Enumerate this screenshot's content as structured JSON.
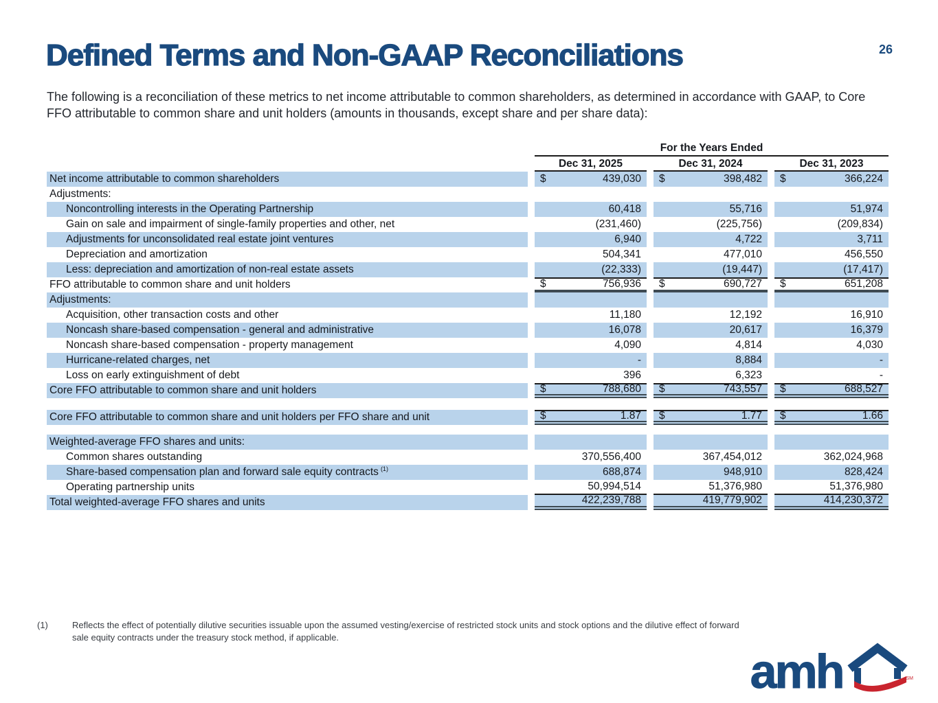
{
  "page": {
    "title": "Defined Terms and Non-GAAP Reconciliations",
    "page_number": "26",
    "intro": "The following is a reconciliation of these metrics to net income attributable to common shareholders, as determined in accordance with GAAP, to Core FFO attributable to common share and unit holders (amounts in thousands, except share and per share data):"
  },
  "colors": {
    "accent_blue": "#1A4A7E",
    "row_highlight": "#B9D3EB",
    "heavy_line": "#3E4A52",
    "thin_line": "#1c1c1c",
    "logo_red": "#C9242E"
  },
  "table": {
    "group_header": "For the Years Ended",
    "columns": [
      "Dec 31, 2025",
      "Dec 31, 2024",
      "Dec 31, 2023"
    ],
    "rows": [
      {
        "label": "Net income attributable to common shareholders",
        "indent": 0,
        "highlight": true,
        "dollar": true,
        "values": [
          "439,030",
          "398,482",
          "366,224"
        ]
      },
      {
        "label": "Adjustments:",
        "indent": 0,
        "highlight": false,
        "values": null
      },
      {
        "label": "Noncontrolling interests in the Operating Partnership",
        "indent": 1,
        "highlight": true,
        "values": [
          "60,418",
          "55,716",
          "51,974"
        ]
      },
      {
        "label": "Gain on sale and impairment of single-family properties and other, net",
        "indent": 1,
        "highlight": false,
        "values": [
          "(231,460)",
          "(225,756)",
          "(209,834)"
        ]
      },
      {
        "label": "Adjustments for unconsolidated real estate joint ventures",
        "indent": 1,
        "highlight": true,
        "values": [
          "6,940",
          "4,722",
          "3,711"
        ]
      },
      {
        "label": "Depreciation and amortization",
        "indent": 1,
        "highlight": false,
        "values": [
          "504,341",
          "477,010",
          "456,550"
        ]
      },
      {
        "label": "Less: depreciation and amortization of non-real estate assets",
        "indent": 1,
        "highlight": true,
        "values": [
          "(22,333)",
          "(19,447)",
          "(17,417)"
        ]
      },
      {
        "label": "FFO attributable to common share and unit holders",
        "indent": 0,
        "highlight": false,
        "dollar": true,
        "values": [
          "756,936",
          "690,727",
          "651,208"
        ],
        "top_line": "thin",
        "bottom_line": "thick"
      },
      {
        "label": "Adjustments:",
        "indent": 0,
        "highlight": true,
        "values": null
      },
      {
        "label": "Acquisition, other transaction costs and other",
        "indent": 1,
        "highlight": false,
        "values": [
          "11,180",
          "12,192",
          "16,910"
        ]
      },
      {
        "label": "Noncash share-based compensation - general and administrative",
        "indent": 1,
        "highlight": true,
        "values": [
          "16,078",
          "20,617",
          "16,379"
        ]
      },
      {
        "label": "Noncash share-based compensation - property management",
        "indent": 1,
        "highlight": false,
        "values": [
          "4,090",
          "4,814",
          "4,030"
        ]
      },
      {
        "label": "Hurricane-related charges, net",
        "indent": 1,
        "highlight": true,
        "values": [
          "-",
          "8,884",
          "-"
        ]
      },
      {
        "label": "Loss on early extinguishment of debt",
        "indent": 1,
        "highlight": false,
        "values": [
          "396",
          "6,323",
          "-"
        ]
      },
      {
        "label": "Core FFO attributable to common share and unit holders",
        "indent": 0,
        "highlight": true,
        "dollar": true,
        "values": [
          "788,680",
          "743,557",
          "688,527"
        ],
        "top_line": "thin",
        "bottom_line": "double"
      },
      {
        "spacer": 17
      },
      {
        "label": "Core FFO attributable to common share and unit holders per FFO share and unit",
        "indent": 0,
        "highlight": true,
        "dollar": true,
        "values": [
          "1.87",
          "1.77",
          "1.66"
        ],
        "top_line": "thin",
        "bottom_line": "double"
      },
      {
        "spacer": 14
      },
      {
        "label": "Weighted-average FFO shares and units:",
        "indent": 0,
        "highlight": true,
        "values": null
      },
      {
        "label": "Common shares outstanding",
        "indent": 1,
        "highlight": false,
        "values": [
          "370,556,400",
          "367,454,012",
          "362,024,968"
        ]
      },
      {
        "label": "Share-based compensation plan and forward sale equity contracts",
        "sup": "(1)",
        "indent": 1,
        "highlight": true,
        "values": [
          "688,874",
          "948,910",
          "828,424"
        ]
      },
      {
        "label": "Operating partnership units",
        "indent": 1,
        "highlight": false,
        "values": [
          "50,994,514",
          "51,376,980",
          "51,376,980"
        ],
        "bottom_line": "thin"
      },
      {
        "label": "Total weighted-average FFO shares and units",
        "indent": 0,
        "highlight": true,
        "values": [
          "422,239,788",
          "419,779,902",
          "414,230,372"
        ],
        "bottom_line": "double"
      }
    ]
  },
  "footnote": {
    "marker": "(1)",
    "text": "Reflects the effect of potentially dilutive securities issuable upon the assumed vesting/exercise of restricted stock units and stock options and the dilutive effect of forward sale equity contracts under the treasury stock method, if applicable."
  },
  "logo": {
    "text": "amh",
    "trademark": "SM"
  }
}
